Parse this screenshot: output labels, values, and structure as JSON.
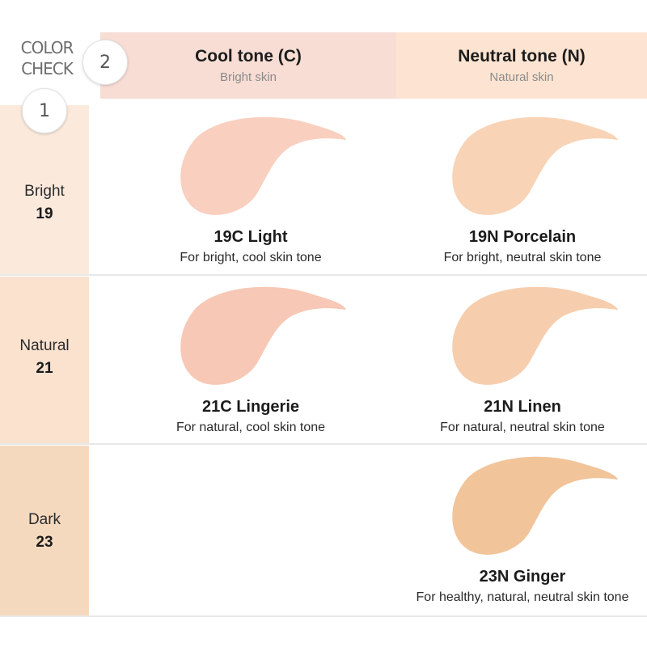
{
  "header": {
    "color_check": "COLOR CHECK",
    "step_columns": "2",
    "step_rows": "1"
  },
  "columns": [
    {
      "title": "Cool tone (C)",
      "subtitle": "Bright skin",
      "color": "#f8ddd5"
    },
    {
      "title": "Neutral tone (N)",
      "subtitle": "Natural skin",
      "color": "#fde4d2"
    }
  ],
  "rows": [
    {
      "name": "Bright",
      "number": "19",
      "color": "#fbeadc"
    },
    {
      "name": "Natural",
      "number": "21",
      "color": "#fae2cf"
    },
    {
      "name": "Dark",
      "number": "23",
      "color": "#f5d9bf"
    }
  ],
  "shades": {
    "c19": {
      "name": "19C Light",
      "desc": "For bright, cool skin tone",
      "color": "#f9cfbf"
    },
    "n19": {
      "name": "19N Porcelain",
      "desc": "For bright, neutral skin tone",
      "color": "#f8d3b6"
    },
    "c21": {
      "name": "21C Lingerie",
      "desc": "For natural, cool skin tone",
      "color": "#f7c8b5"
    },
    "n21": {
      "name": "21N Linen",
      "desc": "For natural, neutral skin tone",
      "color": "#f6ceae"
    },
    "n23": {
      "name": "23N Ginger",
      "desc": "For healthy, natural, neutral skin tone",
      "color": "#f2c49a"
    }
  }
}
